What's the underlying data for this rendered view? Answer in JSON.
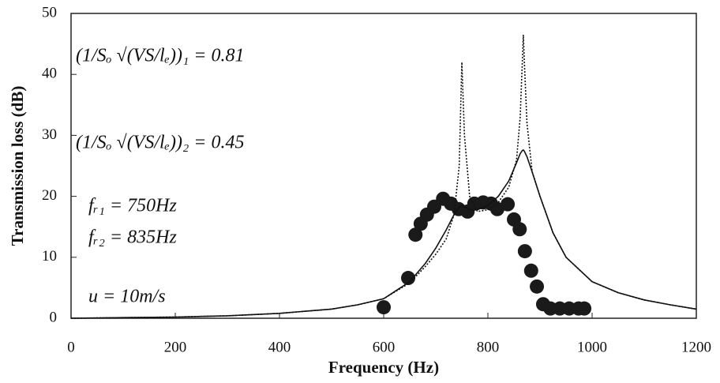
{
  "chart_data": {
    "type": "scatter-line",
    "x_label": "Frequency (Hz)",
    "y_label": "Transmission loss (dB)",
    "xlim": [
      0,
      1200
    ],
    "xticks": [
      0,
      200,
      400,
      600,
      800,
      1000,
      1200
    ],
    "ylim": [
      0,
      50
    ],
    "yticks": [
      0,
      10,
      20,
      30,
      40,
      50
    ],
    "annotations": [
      "(1/Sₒ √(VS/lₑ))₁ = 0.81",
      "(1/Sₒ √(VS/lₑ))₂ = 0.45",
      "fᵣ₁ = 750Hz",
      "fᵣ₂ = 835Hz",
      "u = 10m/s"
    ],
    "series": [
      {
        "kind": "points",
        "color": "#1a1a1a",
        "x": [
          600,
          647,
          661,
          671,
          683,
          697,
          714,
          729,
          744,
          761,
          774,
          791,
          806,
          818,
          838,
          850,
          861,
          871,
          883,
          894,
          906,
          920,
          938,
          956,
          974,
          985
        ],
        "values": [
          1.8,
          6.6,
          13.7,
          15.5,
          17,
          18.3,
          19.6,
          18.8,
          17.9,
          17.5,
          18.8,
          19,
          18.8,
          17.9,
          18.7,
          16.2,
          14.6,
          11,
          7.8,
          5.2,
          2.3,
          1.6,
          1.6,
          1.6,
          1.6,
          1.6
        ]
      },
      {
        "kind": "solid",
        "color": "#111111",
        "x": [
          0,
          100,
          200,
          300,
          400,
          500,
          550,
          600,
          650,
          680,
          700,
          720,
          735,
          745,
          750,
          755,
          765,
          780,
          800,
          820,
          840,
          855,
          862,
          866,
          868,
          870,
          875,
          885,
          900,
          925,
          950,
          1000,
          1050,
          1100,
          1150,
          1200
        ],
        "values": [
          0,
          0.1,
          0.2,
          0.4,
          0.8,
          1.5,
          2.2,
          3.2,
          6,
          9,
          11.5,
          14.5,
          17,
          18.2,
          18.5,
          18.3,
          17.8,
          17.8,
          18.5,
          20,
          22.5,
          25.5,
          27,
          27.5,
          27.6,
          27.4,
          26.5,
          24,
          20,
          14,
          10,
          6,
          4.2,
          3,
          2.2,
          1.5
        ]
      },
      {
        "kind": "dotted",
        "color": "#111111",
        "x": [
          0,
          100,
          200,
          300,
          400,
          500,
          550,
          600,
          650,
          680,
          700,
          720,
          735,
          745,
          750,
          755,
          765,
          780,
          800,
          820,
          840,
          855,
          862,
          866,
          868,
          870,
          875,
          885,
          900,
          925,
          950,
          1000,
          1050,
          1100,
          1150,
          1200
        ],
        "values": [
          0,
          0.1,
          0.2,
          0.4,
          0.8,
          1.5,
          2.2,
          3.2,
          5.8,
          8.5,
          10.5,
          13,
          17,
          25,
          42,
          30,
          20,
          17.5,
          17.8,
          19,
          21.5,
          26,
          33,
          42,
          46.5,
          42,
          32,
          24,
          20,
          14,
          10,
          6,
          4.2,
          3,
          2.2,
          1.5
        ]
      }
    ]
  }
}
